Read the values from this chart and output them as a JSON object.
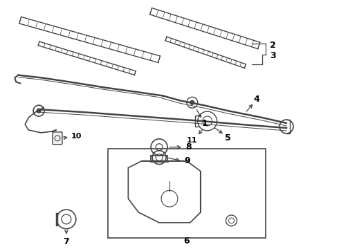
{
  "bg_color": "#ffffff",
  "lc": "#444444",
  "label_color": "#000000",
  "figsize": [
    4.9,
    3.6
  ],
  "dpi": 100
}
